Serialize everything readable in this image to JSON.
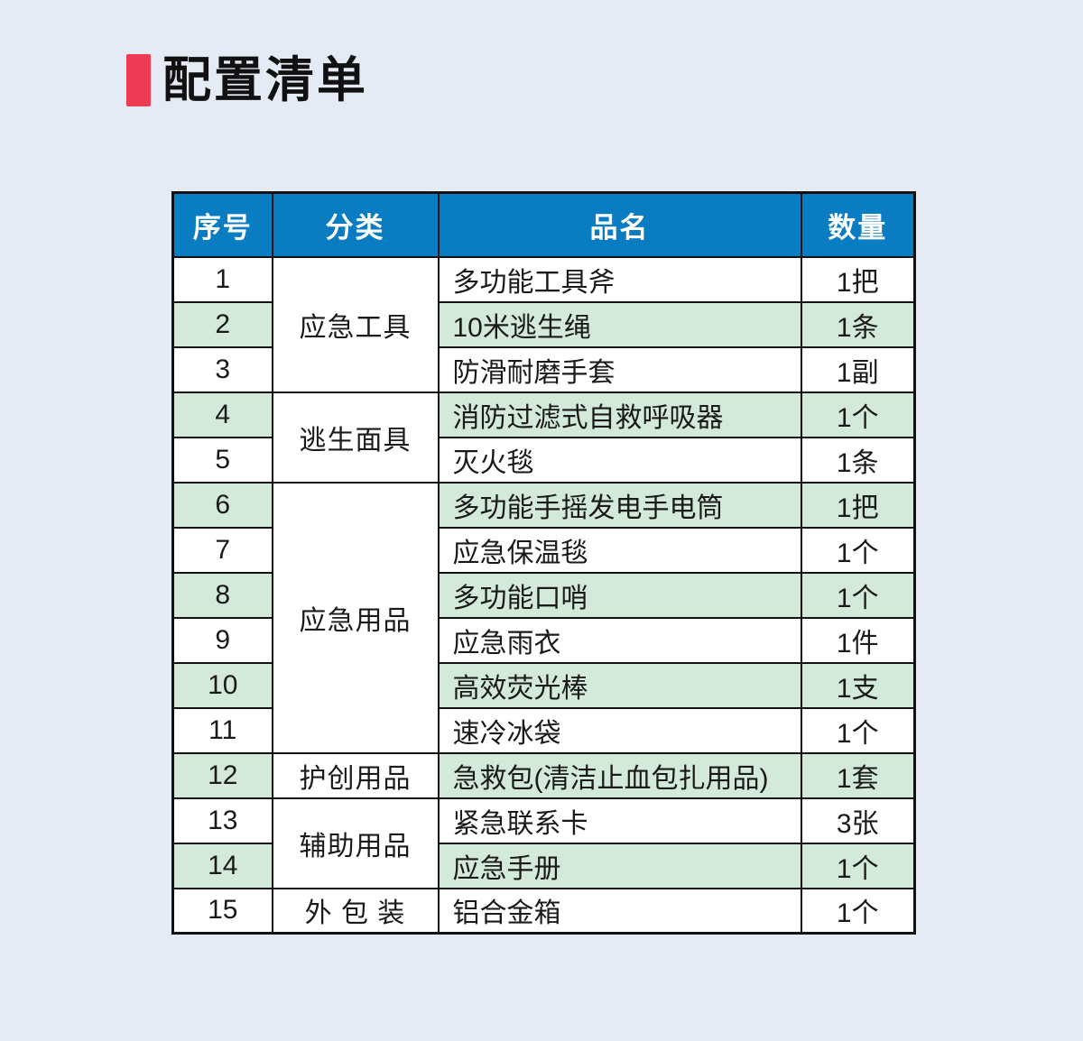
{
  "page": {
    "background_color": "#e4ebf4"
  },
  "header": {
    "title": "配置清单",
    "accent_color": "#ee3b54"
  },
  "table": {
    "header_bg_color": "#0a7cc1",
    "alt_row_color": "#d3e9da",
    "border_color": "#111111",
    "columns": [
      "序号",
      "分类",
      "品名",
      "数量"
    ],
    "rows": [
      {
        "no": "1",
        "category": "应急工具",
        "category_rowspan": 3,
        "name": "多功能工具斧",
        "qty": "1把"
      },
      {
        "no": "2",
        "name": "10米逃生绳",
        "qty": "1条"
      },
      {
        "no": "3",
        "name": "防滑耐磨手套",
        "qty": "1副"
      },
      {
        "no": "4",
        "category": "逃生面具",
        "category_rowspan": 2,
        "name": "消防过滤式自救呼吸器",
        "qty": "1个"
      },
      {
        "no": "5",
        "name": "灭火毯",
        "qty": "1条"
      },
      {
        "no": "6",
        "category": "应急用品",
        "category_rowspan": 6,
        "name": "多功能手摇发电手电筒",
        "qty": "1把"
      },
      {
        "no": "7",
        "name": "应急保温毯",
        "qty": "1个"
      },
      {
        "no": "8",
        "name": "多功能口哨",
        "qty": "1个"
      },
      {
        "no": "9",
        "name": "应急雨衣",
        "qty": "1件"
      },
      {
        "no": "10",
        "name": "高效荧光棒",
        "qty": "1支"
      },
      {
        "no": "11",
        "name": "速冷冰袋",
        "qty": "1个"
      },
      {
        "no": "12",
        "category": "护创用品",
        "category_rowspan": 1,
        "name": "急救包(清洁止血包扎用品)",
        "qty": "1套"
      },
      {
        "no": "13",
        "category": "辅助用品",
        "category_rowspan": 2,
        "name": "紧急联系卡",
        "qty": "3张"
      },
      {
        "no": "14",
        "name": "应急手册",
        "qty": "1个"
      },
      {
        "no": "15",
        "category": "外 包 装",
        "category_rowspan": 1,
        "name": "铝合金箱",
        "qty": "1个"
      }
    ]
  }
}
